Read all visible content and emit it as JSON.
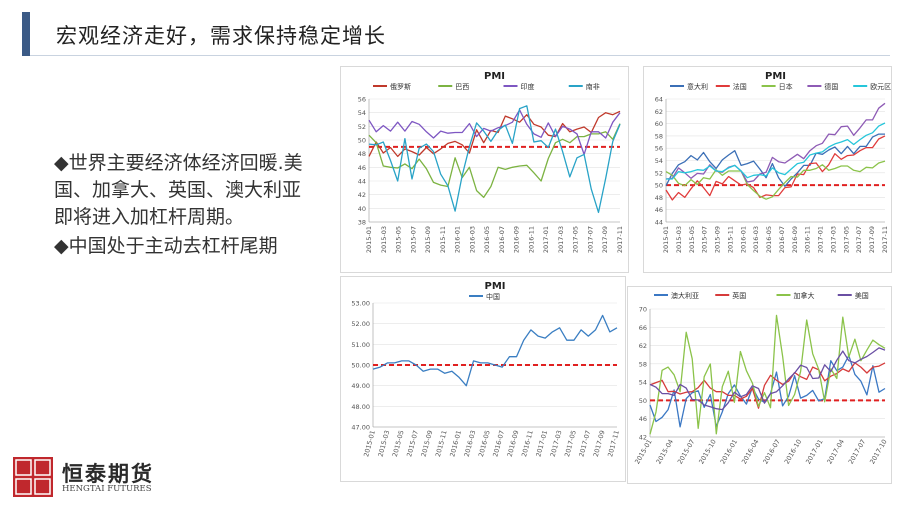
{
  "slide": {
    "title": "宏观经济走好，需求保持稳定增长",
    "bullets": [
      "◆世界主要经济体经济回暖.美国、加拿大、英国、澳大利亚即将进入加杠杆周期。",
      "◆中国处于主动去杠杆尾期"
    ]
  },
  "logo": {
    "cn": "恒泰期货",
    "en": "HENGTAI FUTURES",
    "seal": "證券恒泰"
  },
  "colors": {
    "accent": "#3b5a86",
    "threshold": "#e02020"
  },
  "chart_data": [
    {
      "type": "line",
      "title": "PMI",
      "legend_position": "top",
      "ylim": [
        38,
        56
      ],
      "yticks": [
        38,
        40,
        42,
        44,
        46,
        48,
        50,
        52,
        54,
        56
      ],
      "xticks": [
        "2015-01",
        "2015-03",
        "2015-05",
        "2015-07",
        "2015-09",
        "2015-11",
        "2016-01",
        "2016-03",
        "2016-05",
        "2016-07",
        "2016-09",
        "2016-11",
        "2017-01",
        "2017-03",
        "2017-05",
        "2017-07",
        "2017-09",
        "2017-11"
      ],
      "threshold": 49,
      "series": [
        {
          "name": "俄罗斯",
          "color": "#c0392b",
          "values": [
            47.6,
            49.7,
            48.1,
            48.9,
            47.6,
            48.7,
            48.3,
            47.8,
            48.9,
            48.0,
            48.7,
            49.5,
            49.8,
            49.3,
            48.1,
            51.5,
            49.6,
            51.4,
            51.1,
            53.5,
            53.1,
            52.6,
            53.7,
            52.3,
            51.9,
            50.7,
            50.5,
            52.4,
            51.2,
            51.6,
            51.9,
            51.1,
            53.3,
            54.0,
            53.7,
            54.2
          ]
        },
        {
          "name": "巴西",
          "color": "#7cb342",
          "values": [
            50.7,
            49.6,
            46.2,
            46.0,
            45.9,
            46.5,
            45.8,
            47.2,
            45.8,
            43.8,
            43.4,
            43.2,
            47.4,
            44.5,
            46.0,
            42.6,
            41.6,
            43.2,
            46.0,
            45.7,
            46.0,
            46.2,
            46.3,
            45.2,
            44.0,
            47.3,
            49.6,
            50.1,
            49.6,
            50.5,
            50.5,
            50.9,
            50.9,
            51.2,
            50.1,
            52.4
          ]
        },
        {
          "name": "印度",
          "color": "#7e57c2",
          "values": [
            52.9,
            51.2,
            52.1,
            51.3,
            52.6,
            51.3,
            52.7,
            52.3,
            51.2,
            50.3,
            51.3,
            51.0,
            51.1,
            51.1,
            52.4,
            50.5,
            51.7,
            51.3,
            51.8,
            52.1,
            52.6,
            54.4,
            52.3,
            50.9,
            50.4,
            52.5,
            50.5,
            52.0,
            51.6,
            50.9,
            47.9,
            51.2,
            51.2,
            50.3,
            52.6,
            54.0
          ]
        },
        {
          "name": "南非",
          "color": "#29a3c7",
          "values": [
            49.4,
            49.3,
            49.7,
            47.0,
            44.0,
            50.2,
            44.3,
            48.8,
            49.4,
            48.3,
            45.0,
            43.3,
            39.6,
            44.8,
            49.0,
            52.5,
            51.3,
            49.8,
            51.4,
            52.2,
            49.5,
            54.6,
            55.0,
            49.7,
            49.9,
            48.9,
            51.6,
            48.3,
            44.6,
            47.4,
            47.9,
            42.8,
            39.4,
            44.4,
            49.8,
            52.3
          ]
        }
      ]
    },
    {
      "type": "line",
      "title": "PMI",
      "legend_position": "top",
      "ylim": [
        44,
        64
      ],
      "yticks": [
        44,
        46,
        48,
        50,
        52,
        54,
        56,
        58,
        60,
        62,
        64
      ],
      "xticks": [
        "2015-01",
        "2015-03",
        "2015-05",
        "2015-07",
        "2015-09",
        "2015-11",
        "2016-01",
        "2016-03",
        "2016-05",
        "2016-07",
        "2016-09",
        "2016-11",
        "2017-01",
        "2017-03",
        "2017-05",
        "2017-07",
        "2017-09",
        "2017-11"
      ],
      "threshold": 50,
      "series": [
        {
          "name": "意大利",
          "color": "#3b6fb6",
          "values": [
            49.9,
            51.9,
            53.3,
            53.8,
            54.8,
            54.1,
            55.3,
            53.8,
            52.7,
            54.1,
            54.9,
            55.6,
            53.2,
            53.5,
            53.9,
            52.6,
            51.2,
            53.5,
            51.2,
            49.8,
            51.0,
            52.0,
            53.2,
            53.2,
            55.2,
            55.0,
            55.7,
            56.2,
            55.1,
            56.3,
            55.1,
            56.3,
            56.3,
            57.8,
            58.3,
            58.3
          ]
        },
        {
          "name": "法国",
          "color": "#e03b3b",
          "values": [
            49.2,
            47.6,
            48.8,
            48.0,
            49.4,
            50.7,
            49.6,
            48.3,
            50.6,
            50.2,
            51.4,
            50.7,
            50.0,
            50.2,
            49.6,
            48.0,
            48.4,
            48.3,
            48.3,
            49.6,
            49.7,
            51.8,
            51.7,
            53.5,
            53.6,
            52.2,
            53.3,
            55.1,
            54.2,
            54.8,
            54.9,
            55.6,
            56.1,
            56.1,
            57.5,
            58.0
          ]
        },
        {
          "name": "日本",
          "color": "#8bc34a",
          "values": [
            52.2,
            51.6,
            50.3,
            49.9,
            50.9,
            50.1,
            51.2,
            51.0,
            52.5,
            51.6,
            52.3,
            52.3,
            52.3,
            50.1,
            49.1,
            48.2,
            47.7,
            48.1,
            49.3,
            50.4,
            51.4,
            51.3,
            52.4,
            52.4,
            52.7,
            53.3,
            52.4,
            52.7,
            53.1,
            53.1,
            52.4,
            52.2,
            52.9,
            52.8,
            53.6,
            53.9
          ]
        },
        {
          "name": "德国",
          "color": "#8e5bb5",
          "values": [
            51.0,
            51.1,
            52.8,
            52.0,
            51.1,
            51.9,
            51.8,
            53.3,
            52.3,
            52.1,
            52.9,
            53.2,
            52.3,
            50.5,
            50.7,
            51.8,
            52.1,
            54.5,
            53.8,
            53.6,
            54.3,
            55.0,
            54.3,
            55.6,
            56.4,
            56.8,
            58.3,
            58.2,
            59.5,
            59.6,
            58.1,
            59.3,
            60.6,
            60.6,
            62.5,
            63.3
          ]
        },
        {
          "name": "欧元区",
          "color": "#26c6da",
          "values": [
            51.0,
            51.0,
            52.2,
            52.0,
            52.2,
            52.5,
            52.4,
            53.1,
            52.3,
            52.2,
            52.8,
            53.2,
            52.3,
            51.2,
            51.6,
            51.7,
            51.5,
            52.8,
            52.0,
            51.7,
            52.6,
            53.5,
            53.7,
            54.9,
            55.2,
            55.4,
            56.2,
            56.7,
            57.0,
            57.4,
            56.6,
            57.4,
            58.1,
            58.5,
            59.6,
            60.1
          ]
        }
      ]
    },
    {
      "type": "line",
      "title": "PMI",
      "legend_position": "top",
      "ylim": [
        47,
        53
      ],
      "yticks": [
        "47.00",
        "48.00",
        "49.00",
        "50.00",
        "51.00",
        "52.00",
        "53.00"
      ],
      "xticks": [
        "2015-01",
        "2015-03",
        "2015-05",
        "2015-07",
        "2015-09",
        "2015-11",
        "2016-01",
        "2016-03",
        "2016-05",
        "2016-07",
        "2016-09",
        "2016-11",
        "2017-01",
        "2017-03",
        "2017-05",
        "2017-07",
        "2017-09",
        "2017-11"
      ],
      "threshold": 50,
      "series": [
        {
          "name": "中国",
          "color": "#3a7ec2",
          "values": [
            49.8,
            49.9,
            50.1,
            50.1,
            50.2,
            50.2,
            50.0,
            49.7,
            49.8,
            49.8,
            49.6,
            49.7,
            49.4,
            49.0,
            50.2,
            50.1,
            50.1,
            50.0,
            49.9,
            50.4,
            50.4,
            51.2,
            51.7,
            51.4,
            51.3,
            51.6,
            51.8,
            51.2,
            51.2,
            51.7,
            51.4,
            51.7,
            52.4,
            51.6,
            51.8
          ]
        }
      ]
    },
    {
      "type": "line",
      "title": "",
      "legend_position": "top",
      "ylim": [
        42,
        70
      ],
      "yticks": [
        42,
        46,
        50,
        54,
        58,
        62,
        66,
        70
      ],
      "xticks": [
        "2015-01",
        "2015-04",
        "2015-07",
        "2015-10",
        "2016-01",
        "2016-04",
        "2016-07",
        "2016-10",
        "2017-01",
        "2017-04",
        "2017-07",
        "2017-10"
      ],
      "threshold": 50,
      "series": [
        {
          "name": "澳大利亚",
          "color": "#3b78c4",
          "values": [
            49.0,
            45.4,
            46.3,
            48.0,
            52.3,
            44.2,
            50.4,
            51.7,
            52.1,
            48.5,
            51.3,
            44.3,
            47.5,
            51.5,
            53.4,
            51.0,
            49.2,
            52.8,
            50.3,
            49.6,
            51.5,
            56.2,
            48.8,
            50.9,
            55.4,
            50.5,
            51.1,
            52.2,
            49.9,
            50.4,
            58.7,
            56.5,
            57.3,
            59.8,
            55.7,
            54.2,
            51.2,
            57.6,
            51.8,
            52.6
          ]
        },
        {
          "name": "英国",
          "color": "#d63b3b",
          "values": [
            53.4,
            53.9,
            54.4,
            51.9,
            52.0,
            51.4,
            51.8,
            51.9,
            52.8,
            54.4,
            52.7,
            51.9,
            51.9,
            51.1,
            51.1,
            50.3,
            50.9,
            52.6,
            48.3,
            53.3,
            55.5,
            54.4,
            53.5,
            54.2,
            56.1,
            55.2,
            54.6,
            57.3,
            56.7,
            54.3,
            55.3,
            55.9,
            56.9,
            56.3,
            58.2,
            57.3,
            56.0,
            57.3,
            57.5,
            58.2
          ]
        },
        {
          "name": "加拿大",
          "color": "#8bc34a",
          "values": [
            42.6,
            47.5,
            56.6,
            57.3,
            55.6,
            51.9,
            64.9,
            59.1,
            43.9,
            55.2,
            58.0,
            42.7,
            53.0,
            56.4,
            49.6,
            60.7,
            56.5,
            53.8,
            48.7,
            51.7,
            48.4,
            68.6,
            59.7,
            48.9,
            51.3,
            56.3,
            67.6,
            60.2,
            56.8,
            49.7,
            56.9,
            54.8,
            68.2,
            59.5,
            63.4,
            58.7,
            61.0,
            63.2,
            62.2,
            61.4
          ]
        },
        {
          "name": "美国",
          "color": "#6a4fa3",
          "values": [
            53.5,
            52.9,
            51.5,
            51.5,
            51.1,
            53.5,
            52.7,
            50.2,
            50.1,
            49.0,
            48.6,
            48.2,
            48.0,
            49.5,
            51.8,
            50.8,
            51.3,
            53.2,
            52.6,
            49.4,
            51.5,
            51.9,
            53.2,
            54.7,
            56.0,
            57.7,
            57.2,
            54.8,
            54.9,
            57.8,
            56.3,
            58.8,
            60.8,
            58.7,
            58.2,
            59.0,
            59.6,
            60.5,
            61.5,
            61.0
          ]
        }
      ]
    }
  ]
}
